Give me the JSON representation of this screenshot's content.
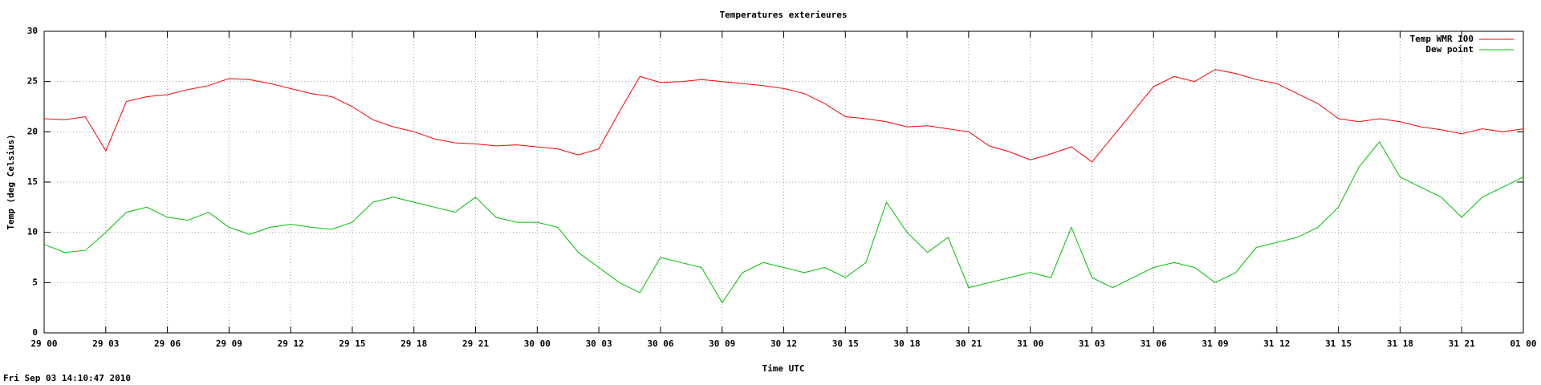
{
  "chart_data": {
    "type": "line",
    "title": "Temperatures exterieures",
    "x_label": "Time UTC",
    "y_label": "Temp (deg Celsius)",
    "timestamp": "Fri Sep 03 14:10:47 2010",
    "x": [
      0,
      1,
      2,
      3,
      4,
      5,
      6,
      7,
      8,
      9,
      10,
      11,
      12,
      13,
      14,
      15,
      16,
      17,
      18,
      19,
      20,
      21,
      22,
      23,
      24,
      25,
      26,
      27,
      28,
      29,
      30,
      31,
      32,
      33,
      34,
      35,
      36,
      37,
      38,
      39,
      40,
      41,
      42,
      43,
      44,
      45,
      46,
      47,
      48,
      49,
      50,
      51,
      52,
      53,
      54,
      55,
      56,
      57,
      58,
      59,
      60,
      61,
      62,
      63,
      64,
      65,
      66,
      67,
      68,
      69,
      70,
      71,
      72
    ],
    "series": [
      {
        "name": "Temp WMR 100",
        "color": "#ff0000",
        "values": [
          21.3,
          21.2,
          21.5,
          18.1,
          23.0,
          23.5,
          23.7,
          24.2,
          24.6,
          25.3,
          25.2,
          24.8,
          24.3,
          23.8,
          23.5,
          22.5,
          21.2,
          20.5,
          20.0,
          19.3,
          18.9,
          18.8,
          18.6,
          18.7,
          18.5,
          18.3,
          17.7,
          18.3,
          22.0,
          25.5,
          24.9,
          25.0,
          25.2,
          25.0,
          24.8,
          24.6,
          24.3,
          23.8,
          22.8,
          21.5,
          21.3,
          21.0,
          20.5,
          20.6,
          20.3,
          20.0,
          18.6,
          18.0,
          17.2,
          17.8,
          18.5,
          17.0,
          19.5,
          22.0,
          24.5,
          25.5,
          25.0,
          26.2,
          25.8,
          25.2,
          24.8,
          23.8,
          22.8,
          21.3,
          21.0,
          21.3,
          21.0,
          20.5,
          20.2,
          19.8,
          20.3,
          20.0,
          20.3
        ]
      },
      {
        "name": "Dew point",
        "color": "#00c000",
        "values": [
          8.8,
          8.0,
          8.2,
          10.0,
          12.0,
          12.5,
          11.5,
          11.2,
          12.0,
          10.5,
          9.8,
          10.5,
          10.8,
          10.5,
          10.3,
          11.0,
          13.0,
          13.5,
          13.0,
          12.5,
          12.0,
          13.5,
          11.5,
          11.0,
          11.0,
          10.5,
          8.0,
          6.5,
          5.0,
          4.0,
          7.5,
          7.0,
          6.5,
          3.0,
          6.0,
          7.0,
          6.5,
          6.0,
          6.5,
          5.5,
          7.0,
          13.0,
          10.0,
          8.0,
          9.5,
          4.5,
          5.0,
          5.5,
          6.0,
          5.5,
          10.5,
          5.5,
          4.5,
          5.5,
          6.5,
          7.0,
          6.5,
          5.0,
          6.0,
          8.5,
          9.0,
          9.5,
          10.5,
          12.5,
          16.5,
          19.0,
          15.5,
          14.5,
          13.5,
          11.5,
          13.5,
          14.5,
          15.5
        ]
      }
    ],
    "xlim": [
      0,
      72
    ],
    "xticks": [
      {
        "value": 0,
        "label": "29 00"
      },
      {
        "value": 3,
        "label": "29 03"
      },
      {
        "value": 6,
        "label": "29 06"
      },
      {
        "value": 9,
        "label": "29 09"
      },
      {
        "value": 12,
        "label": "29 12"
      },
      {
        "value": 15,
        "label": "29 15"
      },
      {
        "value": 18,
        "label": "29 18"
      },
      {
        "value": 21,
        "label": "29 21"
      },
      {
        "value": 24,
        "label": "30 00"
      },
      {
        "value": 27,
        "label": "30 03"
      },
      {
        "value": 30,
        "label": "30 06"
      },
      {
        "value": 33,
        "label": "30 09"
      },
      {
        "value": 36,
        "label": "30 12"
      },
      {
        "value": 39,
        "label": "30 15"
      },
      {
        "value": 42,
        "label": "30 18"
      },
      {
        "value": 45,
        "label": "30 21"
      },
      {
        "value": 48,
        "label": "31 00"
      },
      {
        "value": 51,
        "label": "31 03"
      },
      {
        "value": 54,
        "label": "31 06"
      },
      {
        "value": 57,
        "label": "31 09"
      },
      {
        "value": 60,
        "label": "31 12"
      },
      {
        "value": 63,
        "label": "31 15"
      },
      {
        "value": 66,
        "label": "31 18"
      },
      {
        "value": 69,
        "label": "31 21"
      },
      {
        "value": 72,
        "label": "01 00"
      }
    ],
    "ylim": [
      0,
      30
    ],
    "yticks": [
      0,
      5,
      10,
      15,
      20,
      25,
      30
    ],
    "grid": true,
    "legend": "top-right"
  }
}
